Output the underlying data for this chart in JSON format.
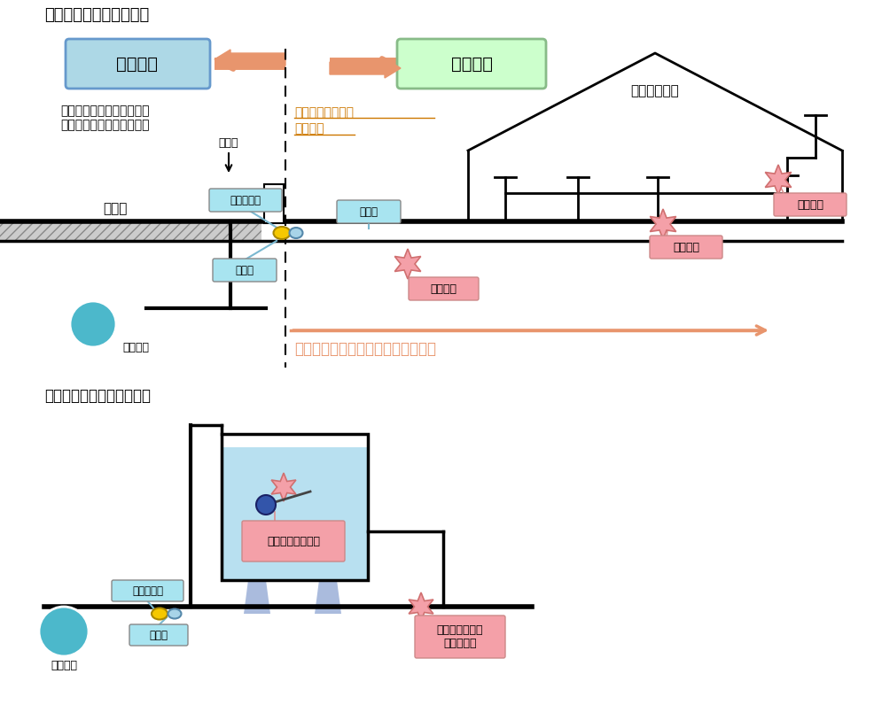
{
  "title1": "『減免対象の範囲は？』",
  "title2": "【集合住宅などの受水槽】",
  "city_mgmt": "市の管理",
  "personal_mgmt": "個人管理",
  "desc_text": "水道メータを基準にして、\n管理区分を決めています。",
  "kanmin_label": "官民界",
  "pipe_label_1": "給水管、給水器具",
  "pipe_label_2": "蛇口など",
  "water_main_label1": "水道本管",
  "water_main_label2": "水道本管",
  "meter_label1": "水道メータ",
  "meter_label2": "水道メータ",
  "stop_valve1": "止水栓",
  "stop_valve2": "止水栓",
  "road_label": "公　道",
  "house_label": "一般住宅など",
  "kyusuikan_label": "給水管",
  "chika_label": "地下漏水",
  "yuka_label": "床下漏水",
  "kabe_label": "壁内漏水",
  "target_text": "発見困難な箇所における漏水が対象",
  "balltap_label": "ボールタップ故障",
  "overflow_label": "オーバーフロー\nによる流出",
  "bg_color": "#ffffff",
  "city_box_color": "#add8e6",
  "personal_box_color": "#ccffcc",
  "arrow_color": "#e8956d",
  "water_main_color": "#4cb8cb",
  "leak_star_color": "#f4a0a8",
  "leak_box_color": "#f4a0a8",
  "pipe_text_color": "#cc7700"
}
